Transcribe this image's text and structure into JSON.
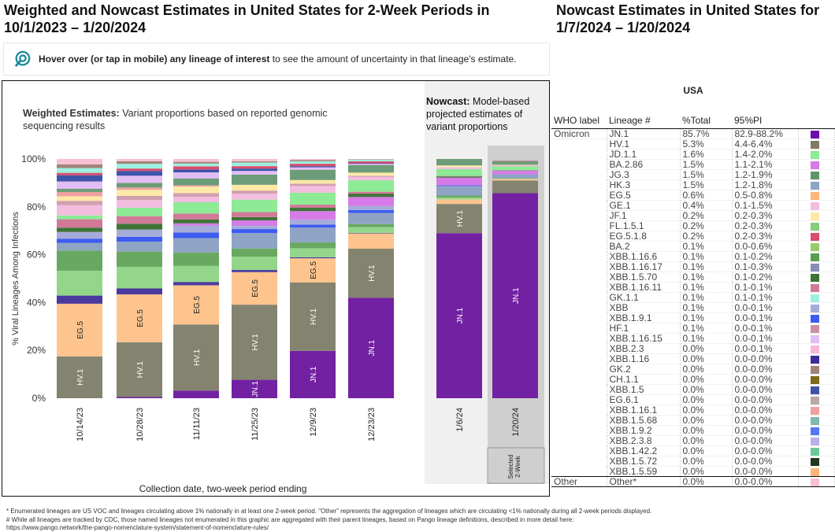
{
  "left_title": "Weighted and Nowcast Estimates in United States for 2-Week Periods in 10/1/2023 – 1/20/2024",
  "right_title": "Nowcast Estimates in United States for 1/7/2024 – 1/20/2024",
  "hover_note": {
    "icon": "pointer-target-icon",
    "bold": "Hover over (or tap in mobile) any lineage of interest",
    "rest": " to see the amount of uncertainty in that lineage's estimate."
  },
  "weighted": {
    "bold": "Weighted Estimates:",
    "rest": " Variant proportions based on reported genomic sequencing results"
  },
  "nowcast": {
    "bold": "Nowcast:",
    "rest": " Model-based projected estimates of variant proportions"
  },
  "selected_label": "Selected 2-Week",
  "chart_data": {
    "type": "bar",
    "stacked": true,
    "title": "Weighted and Nowcast Estimates in United States for 2-Week Periods in 10/1/2023 – 1/20/2024",
    "xlabel": "Collection date, two-week period ending",
    "ylabel": "% Viral Lineages Among Infections",
    "ylim": [
      0,
      100
    ],
    "yticks": [
      "0%",
      "20%",
      "40%",
      "60%",
      "80%",
      "100%"
    ],
    "categories": [
      "10/14/23",
      "10/28/23",
      "11/11/23",
      "11/25/23",
      "12/9/23",
      "12/23/23",
      "1/6/24",
      "1/20/24"
    ],
    "groups": {
      "weighted": [
        0,
        1,
        2,
        3,
        4,
        5
      ],
      "nowcast": [
        6,
        7
      ]
    },
    "selected": 7,
    "series": [
      {
        "name": "JN.1",
        "color": "#7221a3",
        "label_bars": [
          3,
          4,
          5,
          6,
          7
        ],
        "values": [
          0,
          0.5,
          3.2,
          7.7,
          19.8,
          42,
          69,
          85.7
        ]
      },
      {
        "name": "HV.1",
        "color": "#84836f",
        "label_bars": [
          0,
          1,
          2,
          3,
          4,
          5,
          6
        ],
        "values": [
          17.5,
          22.9,
          27.6,
          31.4,
          28.6,
          20.5,
          12.2,
          5.3
        ]
      },
      {
        "name": "EG.5",
        "color": "#fdc48e",
        "label_bars": [
          0,
          1,
          2,
          3,
          4
        ],
        "values": [
          22,
          20,
          16.4,
          13.6,
          10.1,
          6.4,
          1.9,
          0.6
        ]
      },
      {
        "name": "XBB.1.16",
        "color": "#4b3a9e",
        "values": [
          3.4,
          2.5,
          1.4,
          0.9,
          0.4,
          0.2,
          0,
          0
        ]
      },
      {
        "name": "FL.1.5.1",
        "color": "#93d68a",
        "values": [
          10.4,
          9,
          6.7,
          5.6,
          3.8,
          2.4,
          0.8,
          0.2
        ]
      },
      {
        "name": "XBB.1.16.6",
        "color": "#68a860",
        "values": [
          8.4,
          6.4,
          5.6,
          3.4,
          2.4,
          1.3,
          0.8,
          0.1
        ]
      },
      {
        "name": "HK.3",
        "color": "#8fa4c4",
        "values": [
          3.2,
          4.1,
          6,
          6.4,
          6.2,
          4.6,
          4,
          1.5
        ]
      },
      {
        "name": "XBB.1.9.1",
        "color": "#3e5cf0",
        "values": [
          1.8,
          2.1,
          2.4,
          1.7,
          1.3,
          1.3,
          0.3,
          0.1
        ]
      },
      {
        "name": "XBB",
        "color": "#a6acd9",
        "values": [
          2.8,
          3,
          2.9,
          1.5,
          2.1,
          1.6,
          0,
          0.1
        ]
      },
      {
        "name": "BA.2.86",
        "color": "#d67be8",
        "values": [
          0,
          0,
          0.9,
          2.1,
          3.5,
          3.8,
          3.2,
          1.5
        ]
      },
      {
        "name": "XBB.1.5.70",
        "color": "#3f7338",
        "values": [
          1.8,
          2.4,
          1.6,
          1.4,
          1.4,
          1.4,
          0.5,
          0.1
        ]
      },
      {
        "name": "XBB.1.16.11",
        "color": "#d07a98",
        "values": [
          3.5,
          3.2,
          2.5,
          2.1,
          1.3,
          0.8,
          0.2,
          0.1
        ]
      },
      {
        "name": "JD.1.1",
        "color": "#8ceb94",
        "values": [
          1.6,
          3.5,
          4.7,
          5.2,
          5,
          4.8,
          2.9,
          1.6
        ]
      },
      {
        "name": "GE.1",
        "color": "#f3bde0",
        "values": [
          4.3,
          3.2,
          2.3,
          2.5,
          2.8,
          1.4,
          0.8,
          0.4
        ]
      },
      {
        "name": "HF.1",
        "color": "#d1a0b0",
        "values": [
          1.8,
          1.8,
          1.5,
          1.3,
          1,
          0.5,
          0,
          0.1
        ]
      },
      {
        "name": "JF.1",
        "color": "#fde9a6",
        "values": [
          1.9,
          2.5,
          2.8,
          2.4,
          1.5,
          1.3,
          0.7,
          0.2
        ]
      },
      {
        "name": "XBB.1.16.1",
        "color": "#f0a0a0",
        "values": [
          1.8,
          1,
          0.5,
          0,
          0,
          0,
          0,
          0
        ]
      },
      {
        "name": "JG.3",
        "color": "#6c9c78",
        "values": [
          1.4,
          1.9,
          2.9,
          4.3,
          4.3,
          3.2,
          2.7,
          1.5
        ]
      },
      {
        "name": "XBB.1.16.15",
        "color": "#e3bdf5",
        "values": [
          3,
          3,
          2.5,
          1.5,
          1,
          0.5,
          0,
          0.1
        ]
      },
      {
        "name": "XBB.1.5",
        "color": "#3e54a8",
        "values": [
          2.6,
          2,
          1.2,
          1,
          0.5,
          0.2,
          0,
          0
        ]
      },
      {
        "name": "EG.5.1.8",
        "color": "#dc4c6c",
        "values": [
          1,
          1,
          1.3,
          1,
          1,
          0.8,
          0,
          0.2
        ]
      },
      {
        "name": "GK.1.1",
        "color": "#9ef0e0",
        "values": [
          2,
          2,
          1.2,
          1.5,
          1,
          0.7,
          0,
          0.1
        ]
      },
      {
        "name": "GK.2",
        "color": "#a08478",
        "values": [
          1.5,
          1,
          0.7,
          0.5,
          0.5,
          0.2,
          0,
          0
        ]
      },
      {
        "name": "Other",
        "color": "#f7c0d4",
        "values": [
          2.3,
          1,
          1.2,
          1,
          0.5,
          0.1,
          0,
          0
        ]
      }
    ]
  },
  "table": {
    "region": "USA",
    "headers": [
      "WHO label",
      "Lineage #",
      "%Total",
      "95%PI"
    ],
    "rows": [
      {
        "who": "Omicron",
        "lineage": "JN.1",
        "total": "85.7%",
        "pi": "82.9-88.2%",
        "color": "#6a0dad"
      },
      {
        "who": "",
        "lineage": "HV.1",
        "total": "5.3%",
        "pi": "4.4-6.4%",
        "color": "#807b67"
      },
      {
        "who": "",
        "lineage": "JD.1.1",
        "total": "1.6%",
        "pi": "1.4-2.0%",
        "color": "#8ceb94"
      },
      {
        "who": "",
        "lineage": "BA.2.86",
        "total": "1.5%",
        "pi": "1.1-2.1%",
        "color": "#d67be8"
      },
      {
        "who": "",
        "lineage": "JG.3",
        "total": "1.5%",
        "pi": "1.2-1.9%",
        "color": "#5f956c"
      },
      {
        "who": "",
        "lineage": "HK.3",
        "total": "1.5%",
        "pi": "1.2-1.8%",
        "color": "#8fa4c4"
      },
      {
        "who": "",
        "lineage": "EG.5",
        "total": "0.6%",
        "pi": "0.5-0.8%",
        "color": "#fdb57a"
      },
      {
        "who": "",
        "lineage": "GE.1",
        "total": "0.4%",
        "pi": "0.1-1.5%",
        "color": "#f3bde0"
      },
      {
        "who": "",
        "lineage": "JF.1",
        "total": "0.2%",
        "pi": "0.2-0.3%",
        "color": "#fde9a6"
      },
      {
        "who": "",
        "lineage": "FL.1.5.1",
        "total": "0.2%",
        "pi": "0.2-0.3%",
        "color": "#85cf7a"
      },
      {
        "who": "",
        "lineage": "EG.5.1.8",
        "total": "0.2%",
        "pi": "0.2-0.3%",
        "color": "#dc4c6c"
      },
      {
        "who": "",
        "lineage": "BA.2",
        "total": "0.1%",
        "pi": "0.0-0.6%",
        "color": "#9acb6a"
      },
      {
        "who": "",
        "lineage": "XBB.1.16.6",
        "total": "0.1%",
        "pi": "0.1-0.2%",
        "color": "#5a9e52"
      },
      {
        "who": "",
        "lineage": "XBB.1.16.17",
        "total": "0.1%",
        "pi": "0.1-0.3%",
        "color": "#8c8cb8"
      },
      {
        "who": "",
        "lineage": "XBB.1.5.70",
        "total": "0.1%",
        "pi": "0.1-0.2%",
        "color": "#3f7338"
      },
      {
        "who": "",
        "lineage": "XBB.1.16.11",
        "total": "0.1%",
        "pi": "0.1-0.1%",
        "color": "#d07a98"
      },
      {
        "who": "",
        "lineage": "GK.1.1",
        "total": "0.1%",
        "pi": "0.1-0.1%",
        "color": "#9ef0e0"
      },
      {
        "who": "",
        "lineage": "XBB",
        "total": "0.1%",
        "pi": "0.0-0.1%",
        "color": "#a6acd9"
      },
      {
        "who": "",
        "lineage": "XBB.1.9.1",
        "total": "0.1%",
        "pi": "0.0-0.1%",
        "color": "#3e5cf0"
      },
      {
        "who": "",
        "lineage": "HF.1",
        "total": "0.1%",
        "pi": "0.0-0.1%",
        "color": "#cc90a4"
      },
      {
        "who": "",
        "lineage": "XBB.1.16.15",
        "total": "0.1%",
        "pi": "0.0-0.1%",
        "color": "#e3bdf5"
      },
      {
        "who": "",
        "lineage": "XBB.2.3",
        "total": "0.0%",
        "pi": "0.0-0.1%",
        "color": "#f5b8d8"
      },
      {
        "who": "",
        "lineage": "XBB.1.16",
        "total": "0.0%",
        "pi": "0.0-0.0%",
        "color": "#3f2a9a"
      },
      {
        "who": "",
        "lineage": "GK.2",
        "total": "0.0%",
        "pi": "0.0-0.0%",
        "color": "#a08478"
      },
      {
        "who": "",
        "lineage": "CH.1.1",
        "total": "0.0%",
        "pi": "0.0-0.0%",
        "color": "#7d6b17"
      },
      {
        "who": "",
        "lineage": "XBB.1.5",
        "total": "0.0%",
        "pi": "0.0-0.0%",
        "color": "#3e54a8"
      },
      {
        "who": "",
        "lineage": "EG.6.1",
        "total": "0.0%",
        "pi": "0.0-0.0%",
        "color": "#b8a8a8"
      },
      {
        "who": "",
        "lineage": "XBB.1.16.1",
        "total": "0.0%",
        "pi": "0.0-0.0%",
        "color": "#f0a0a0"
      },
      {
        "who": "",
        "lineage": "XBB.1.5.68",
        "total": "0.0%",
        "pi": "0.0-0.0%",
        "color": "#7fb8b0"
      },
      {
        "who": "",
        "lineage": "XBB.1.9.2",
        "total": "0.0%",
        "pi": "0.0-0.0%",
        "color": "#5577f5"
      },
      {
        "who": "",
        "lineage": "XBB.2.3.8",
        "total": "0.0%",
        "pi": "0.0-0.0%",
        "color": "#b8b0e8"
      },
      {
        "who": "",
        "lineage": "XBB.1.42.2",
        "total": "0.0%",
        "pi": "0.0-0.0%",
        "color": "#6cc898"
      },
      {
        "who": "",
        "lineage": "XBB.1.5.72",
        "total": "0.0%",
        "pi": "0.0-0.0%",
        "color": "#20381c"
      },
      {
        "who": "",
        "lineage": "XBB.1.5.59",
        "total": "0.0%",
        "pi": "0.0-0.0%",
        "color": "#fdb57a"
      },
      {
        "who": "Other",
        "lineage": "Other*",
        "total": "0.0%",
        "pi": "0.0-0.0%",
        "color": "#f7c0d4",
        "other": true
      }
    ]
  },
  "footnotes": [
    "*     Enumerated lineages are US VOC and lineages circulating above 1% nationally in at least one 2-week period. \"Other\" represents the aggregation of lineages which are circulating <1% nationally during all 2-week periods displayed.",
    "#     While all lineages are tracked by CDC, those named lineages not enumerated in this graphic are aggregated with their parent lineages, based on Pango lineage definitions, described in more detail here:",
    "https://www.pango.network/the-pango-nomenclature-system/statement-of-nomenclature-rules/"
  ]
}
